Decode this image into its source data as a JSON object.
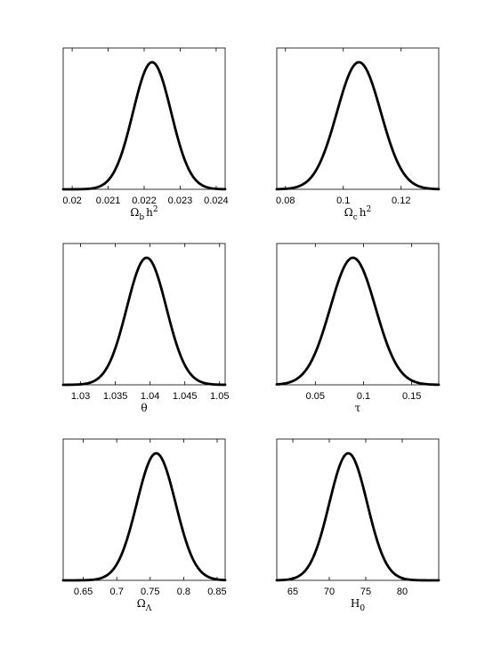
{
  "chart_data": [
    {
      "type": "line",
      "xlabel": "Ωb h2",
      "xlim": [
        0.01975,
        0.02425
      ],
      "xticks": [
        "0.02",
        "0.021",
        "0.022",
        "0.023",
        "0.024"
      ],
      "tick_values": [
        0.02,
        0.021,
        0.022,
        0.023,
        0.024
      ],
      "yticks": [],
      "curve": {
        "mean": 0.02222,
        "sigma": 0.00053
      }
    },
    {
      "type": "line",
      "xlabel": "Ωc h2",
      "xlim": [
        0.077,
        0.133
      ],
      "xticks": [
        "0.08",
        "0.1",
        "0.12"
      ],
      "tick_values": [
        0.08,
        0.1,
        0.12
      ],
      "yticks": [],
      "curve": {
        "mean": 0.1054,
        "sigma": 0.0076
      }
    },
    {
      "type": "line",
      "xlabel": "θ",
      "xlim": [
        1.0275,
        1.0508
      ],
      "xticks": [
        "1.03",
        "1.035",
        "1.04",
        "1.045",
        "1.05"
      ],
      "tick_values": [
        1.03,
        1.035,
        1.04,
        1.045,
        1.05
      ],
      "yticks": [],
      "curve": {
        "mean": 1.0395,
        "sigma": 0.00285
      }
    },
    {
      "type": "line",
      "xlabel": "τ",
      "xlim": [
        0.01,
        0.178
      ],
      "xticks": [
        "0.05",
        "0.1",
        "0.15"
      ],
      "tick_values": [
        0.05,
        0.1,
        0.15
      ],
      "yticks": [],
      "curve": {
        "mean": 0.089,
        "sigma": 0.0235
      }
    },
    {
      "type": "line",
      "xlabel": "ΩΛ",
      "xlim": [
        0.62,
        0.862
      ],
      "xticks": [
        "0.65",
        "0.7",
        "0.75",
        "0.8",
        "0.85"
      ],
      "tick_values": [
        0.65,
        0.7,
        0.75,
        0.8,
        0.85
      ],
      "yticks": [],
      "curve": {
        "mean": 0.759,
        "sigma": 0.029
      }
    },
    {
      "type": "line",
      "xlabel": "H0",
      "xlim": [
        62.8,
        85.0
      ],
      "xticks": [
        "65",
        "70",
        "75",
        "80"
      ],
      "tick_values": [
        65,
        70,
        75,
        80
      ],
      "yticks": [],
      "curve": {
        "mean": 72.6,
        "sigma": 2.6
      }
    }
  ]
}
